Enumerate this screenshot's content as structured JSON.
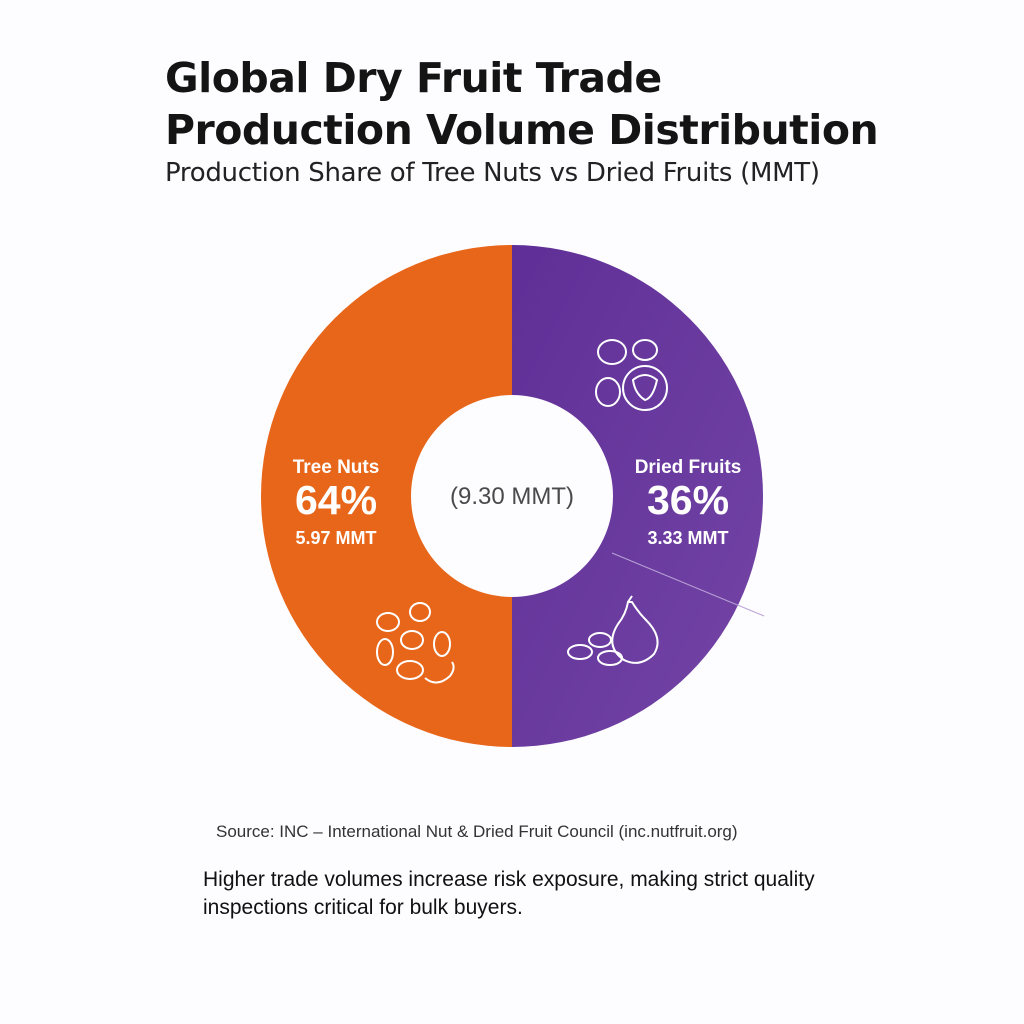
{
  "chart_data": {
    "type": "pie",
    "title": "Global Dry Fruit Trade Production Volume Distribution",
    "title_lines": [
      "Global Dry Fruit Trade",
      "Production Volume Distribution"
    ],
    "subtitle": "Production Share of Tree Nuts vs Dried Fruits (MMT)",
    "center_label": "(9.30 MMT)",
    "total": 9.3,
    "unit": "MMT",
    "slices": [
      {
        "name": "Tree Nuts",
        "percent": 64,
        "percent_label": "64%",
        "value": 5.97,
        "value_label": "5.97 MMT",
        "color": "#E8661A",
        "icon": "tree-nuts-icon"
      },
      {
        "name": "Dried Fruits",
        "percent": 36,
        "percent_label": "36%",
        "value": 3.33,
        "value_label": "3.33 MMT",
        "color": "#6A3A9E",
        "icon": "dried-fruits-icon"
      }
    ],
    "legend": "none"
  },
  "footer": {
    "source": "Source: INC – International Nut & Dried Fruit Council (inc.nutfruit.org)",
    "note": "Higher trade volumes increase risk exposure, making strict quality inspections critical for bulk buyers."
  }
}
